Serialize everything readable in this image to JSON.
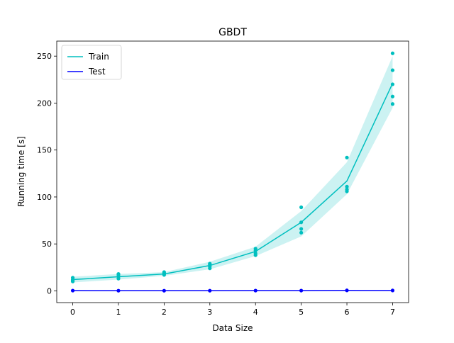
{
  "chart_data": {
    "type": "line",
    "title": "GBDT",
    "xlabel": "Data Size",
    "ylabel": "Running time [s]",
    "xlim": [
      -0.35,
      7.35
    ],
    "ylim": [
      -12.5,
      266
    ],
    "xticks": [
      0,
      1,
      2,
      3,
      4,
      5,
      6,
      7
    ],
    "yticks": [
      0,
      50,
      100,
      150,
      200,
      250
    ],
    "grid": false,
    "legend_position": "top-left",
    "series": [
      {
        "name": "Train",
        "color": "#00bfbf",
        "x": [
          0,
          1,
          2,
          3,
          4,
          5,
          6,
          7
        ],
        "mean": [
          12,
          15,
          18,
          27,
          42,
          73,
          117,
          221
        ],
        "band_low": [
          9,
          12,
          16,
          23,
          37,
          58,
          103,
          195
        ],
        "band_high": [
          15,
          18,
          20,
          31,
          47,
          85,
          137,
          250
        ],
        "points": [
          [
            0,
            10
          ],
          [
            0,
            12
          ],
          [
            0,
            14
          ],
          [
            0,
            11
          ],
          [
            1,
            13
          ],
          [
            1,
            15
          ],
          [
            1,
            17
          ],
          [
            1,
            18
          ],
          [
            2,
            17
          ],
          [
            2,
            18
          ],
          [
            2,
            19
          ],
          [
            2,
            20
          ],
          [
            3,
            24
          ],
          [
            3,
            26
          ],
          [
            3,
            28
          ],
          [
            3,
            29
          ],
          [
            4,
            38
          ],
          [
            4,
            40
          ],
          [
            4,
            43
          ],
          [
            4,
            45
          ],
          [
            5,
            62
          ],
          [
            5,
            66
          ],
          [
            5,
            73
          ],
          [
            5,
            89
          ],
          [
            6,
            106
          ],
          [
            6,
            108
          ],
          [
            6,
            111
          ],
          [
            6,
            142
          ],
          [
            7,
            199
          ],
          [
            7,
            207
          ],
          [
            7,
            220
          ],
          [
            7,
            235
          ],
          [
            7,
            253
          ]
        ]
      },
      {
        "name": "Test",
        "color": "#0000ff",
        "x": [
          0,
          1,
          2,
          3,
          4,
          5,
          6,
          7
        ],
        "mean": [
          0.3,
          0.2,
          0.2,
          0.2,
          0.3,
          0.3,
          0.5,
          0.4
        ],
        "points": [
          [
            0,
            0.3
          ],
          [
            1,
            0.2
          ],
          [
            2,
            0.2
          ],
          [
            3,
            0.2
          ],
          [
            4,
            0.3
          ],
          [
            5,
            0.3
          ],
          [
            6,
            0.5
          ],
          [
            7,
            0.4
          ]
        ]
      }
    ]
  }
}
